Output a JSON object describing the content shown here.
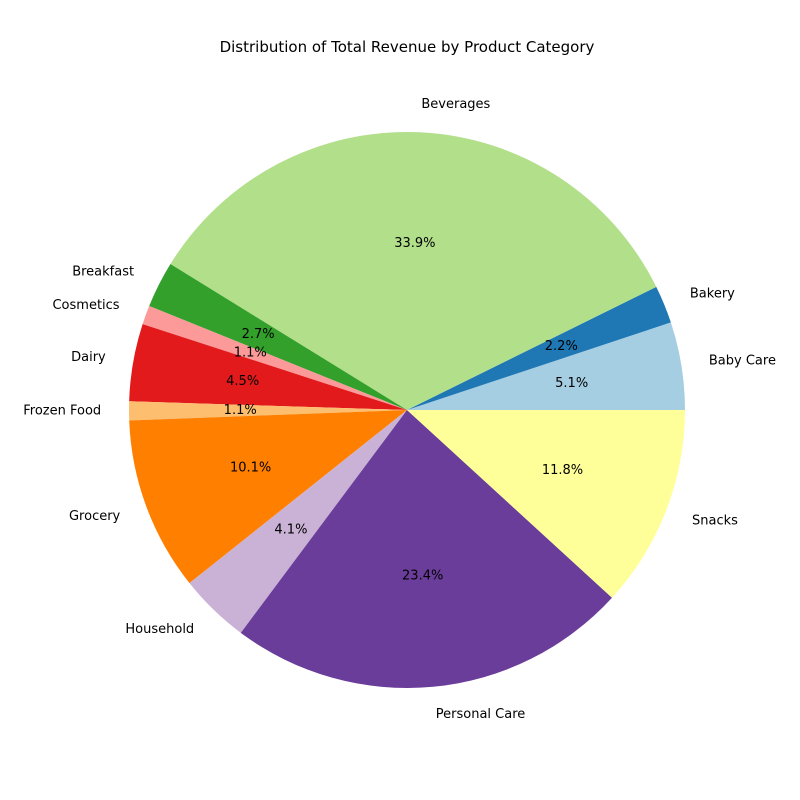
{
  "chart_data": {
    "type": "pie",
    "title": "Distribution of Total Revenue by Product Category",
    "start_angle_deg": 0,
    "direction": "counterclockwise",
    "slices": [
      {
        "label": "Baby Care",
        "value": 5.1,
        "pct_label": "5.1%",
        "color": "#a6cee3"
      },
      {
        "label": "Bakery",
        "value": 2.2,
        "pct_label": "2.2%",
        "color": "#1f78b4"
      },
      {
        "label": "Beverages",
        "value": 33.9,
        "pct_label": "33.9%",
        "color": "#b2df8a"
      },
      {
        "label": "Breakfast",
        "value": 2.7,
        "pct_label": "2.7%",
        "color": "#33a02c"
      },
      {
        "label": "Cosmetics",
        "value": 1.1,
        "pct_label": "1.1%",
        "color": "#fb9a99"
      },
      {
        "label": "Dairy",
        "value": 4.5,
        "pct_label": "4.5%",
        "color": "#e31a1c"
      },
      {
        "label": "Frozen Food",
        "value": 1.1,
        "pct_label": "1.1%",
        "color": "#fdbf6f"
      },
      {
        "label": "Grocery",
        "value": 10.1,
        "pct_label": "10.1%",
        "color": "#ff7f00"
      },
      {
        "label": "Household",
        "value": 4.1,
        "pct_label": "4.1%",
        "color": "#cab2d6"
      },
      {
        "label": "Personal Care",
        "value": 23.4,
        "pct_label": "23.4%",
        "color": "#6a3d9a"
      },
      {
        "label": "Snacks",
        "value": 11.8,
        "pct_label": "11.8%",
        "color": "#ffff99"
      }
    ]
  }
}
